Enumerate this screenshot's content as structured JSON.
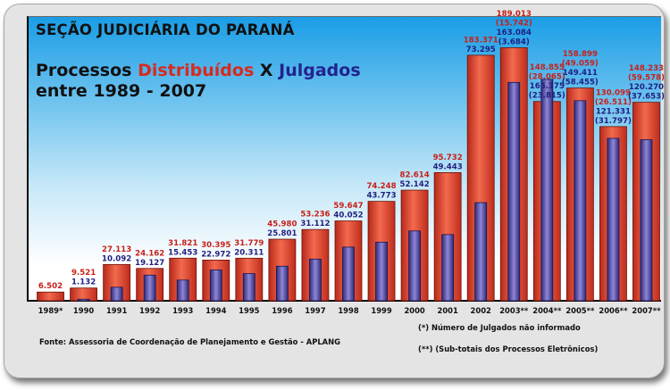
{
  "title": "SEÇÃO JUDICIÁRIA DO PARANÁ",
  "subtitle": {
    "prefix": "Processos ",
    "distribuidos": "Distribuídos",
    "middle": " X ",
    "julgados": "Julgados",
    "line2": "entre 1989 - 2007"
  },
  "source": "Fonte: Assessoria de Coordenação de Planejamento e Gestão - APLANG",
  "notes": [
    "(*) Número de Julgados não informado",
    "(**) (Sub-totais dos Processos Eletrônicos)"
  ],
  "colors": {
    "distribuidos": "#e8432e",
    "julgados": "#4a3f9e",
    "label_distribuidos": "#c8201a",
    "label_julgados": "#1f1f80"
  },
  "chart_data": {
    "type": "bar",
    "categories": [
      "1989*",
      "1990",
      "1991",
      "1992",
      "1993",
      "1994",
      "1995",
      "1996",
      "1997",
      "1998",
      "1999",
      "2000",
      "2001",
      "2002",
      "2003**",
      "2004**",
      "2005**",
      "2006**",
      "2007**"
    ],
    "ylim": [
      0,
      200000
    ],
    "series": [
      {
        "name": "Distribuídos",
        "values": [
          6502,
          9521,
          27113,
          24162,
          31821,
          30395,
          31779,
          45980,
          53236,
          59647,
          74248,
          82614,
          95732,
          183371,
          189013,
          148855,
          158899,
          130099,
          148233
        ],
        "labels": [
          "6.502",
          "9.521",
          "27.113",
          "24.162",
          "31.821",
          "30.395",
          "31.779",
          "45.980",
          "53.236",
          "59.647",
          "74.248",
          "82.614",
          "95.732",
          "183.371",
          "189.013",
          "148.855",
          "158.899",
          "130.099",
          "148.233"
        ],
        "sub_labels": [
          "",
          "",
          "",
          "",
          "",
          "",
          "",
          "",
          "",
          "",
          "",
          "",
          "",
          "",
          "(15.742)",
          "(28.065)",
          "(49.059)",
          "(26.511)",
          "(59.578)"
        ]
      },
      {
        "name": "Julgados",
        "values": [
          null,
          1132,
          10092,
          19127,
          15453,
          22972,
          20311,
          25801,
          31112,
          40052,
          43773,
          52142,
          49443,
          73295,
          163084,
          165375,
          149411,
          121331,
          120270
        ],
        "labels": [
          "",
          "1.132",
          "10.092",
          "19.127",
          "15.453",
          "22.972",
          "20.311",
          "25.801",
          "31.112",
          "40.052",
          "43.773",
          "52.142",
          "49.443",
          "73.295",
          "163.084",
          "165.375",
          "149.411",
          "121.331",
          "120.270"
        ],
        "sub_labels": [
          "",
          "",
          "",
          "",
          "",
          "",
          "",
          "",
          "",
          "",
          "",
          "",
          "",
          "",
          "(3.684)",
          "(23.815)",
          "(58.455)",
          "(31.797)",
          "(37.653)"
        ]
      }
    ]
  }
}
